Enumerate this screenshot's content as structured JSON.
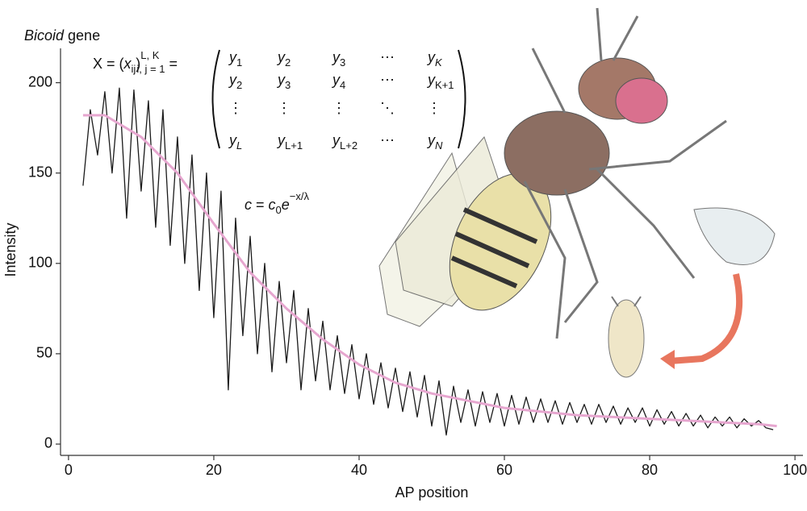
{
  "chart_data": {
    "type": "line",
    "title": "Bicoid gene",
    "x_label": "AP position",
    "y_label": "Intensity",
    "xlim": [
      -1.1,
      101.1
    ],
    "ylim": [
      -6.25,
      219
    ],
    "xticks": [
      0,
      20,
      40,
      60,
      80,
      100
    ],
    "yticks": [
      0,
      50,
      100,
      150,
      200
    ],
    "series": [
      {
        "color": "#1a1a1a",
        "x": [
          2,
          3,
          4,
          5,
          6,
          7,
          8,
          9,
          10,
          11,
          12,
          13,
          14,
          15,
          16,
          17,
          18,
          19,
          20,
          21,
          22,
          23,
          24,
          25,
          26,
          27,
          28,
          29,
          30,
          31,
          32,
          33,
          34,
          35,
          36,
          37,
          38,
          39,
          40,
          41,
          42,
          43,
          44,
          45,
          46,
          47,
          48,
          49,
          50,
          51,
          52,
          53,
          54,
          55,
          56,
          57,
          58,
          59,
          60,
          61,
          62,
          63,
          64,
          65,
          66,
          67,
          68,
          69,
          70,
          71,
          72,
          73,
          74,
          75,
          76,
          77,
          78,
          79,
          80,
          81,
          82,
          83,
          84,
          85,
          86,
          87,
          88,
          89,
          90,
          91,
          92,
          93,
          94,
          95,
          96,
          97
        ],
        "values": [
          143,
          185,
          160,
          195,
          150,
          197,
          125,
          196,
          140,
          190,
          120,
          185,
          110,
          170,
          100,
          160,
          85,
          150,
          70,
          140,
          30,
          125,
          60,
          115,
          50,
          100,
          40,
          90,
          45,
          85,
          30,
          75,
          35,
          68,
          30,
          60,
          28,
          55,
          25,
          50,
          22,
          45,
          20,
          42,
          18,
          40,
          15,
          38,
          10,
          35,
          5,
          32,
          12,
          30,
          10,
          29,
          12,
          28,
          10,
          27,
          11,
          26,
          12,
          25,
          12,
          24,
          11,
          23,
          12,
          22,
          11,
          22,
          12,
          21,
          11,
          20,
          12,
          20,
          10,
          19,
          11,
          18,
          10,
          17,
          10,
          16,
          9,
          15,
          10,
          15,
          9,
          14,
          10,
          13,
          9,
          8
        ]
      },
      {
        "color": "#e6a6cf",
        "x": [
          2,
          5,
          10,
          15,
          20,
          25,
          30,
          35,
          40,
          45,
          50,
          55,
          60,
          65,
          70,
          75,
          80,
          85,
          90,
          95,
          97.5
        ],
        "values": [
          182,
          182,
          170,
          150,
          122,
          95,
          75,
          58,
          44,
          34,
          28,
          24,
          20,
          18,
          16,
          15,
          14,
          13,
          12,
          11,
          10
        ]
      }
    ],
    "formula": [
      {
        "text": "X = (",
        "style": "normal"
      },
      {
        "text": "x",
        "style": "italic"
      },
      {
        "text": "ij",
        "style": "sub"
      },
      {
        "text": ")",
        "style": "normal"
      },
      {
        "text": "L, K",
        "style": "sup"
      },
      {
        "text": "i, j = 1",
        "style": "sub"
      },
      {
        "text": " =",
        "style": "normal"
      }
    ],
    "matrix": [
      [
        {
          "base": "y",
          "sub": "1"
        },
        {
          "base": "y",
          "sub": "2"
        },
        {
          "base": "y",
          "sub": "3"
        },
        "⋯",
        {
          "base": "y",
          "sub": "K"
        }
      ],
      [
        {
          "base": "y",
          "sub": "2"
        },
        {
          "base": "y",
          "sub": "3"
        },
        {
          "base": "y",
          "sub": "4"
        },
        "⋯",
        {
          "base": "y",
          "sub": "K+1"
        }
      ],
      [
        "⋮",
        "⋮",
        "⋮",
        "⋱",
        "⋮"
      ],
      [
        {
          "base": "y",
          "sub": "L"
        },
        {
          "base": "y",
          "sub": "L+1"
        },
        {
          "base": "y",
          "sub": "L+2"
        },
        "⋯",
        {
          "base": "y",
          "sub": "N"
        }
      ]
    ],
    "equation": [
      {
        "text": "c",
        "style": "italic"
      },
      {
        "text": " = ",
        "style": "normal"
      },
      {
        "text": "c",
        "style": "italic"
      },
      {
        "text": "0",
        "style": "sub"
      },
      {
        "text": "e",
        "style": "italic"
      },
      {
        "text": "−x/λ",
        "style": "sup"
      }
    ]
  }
}
